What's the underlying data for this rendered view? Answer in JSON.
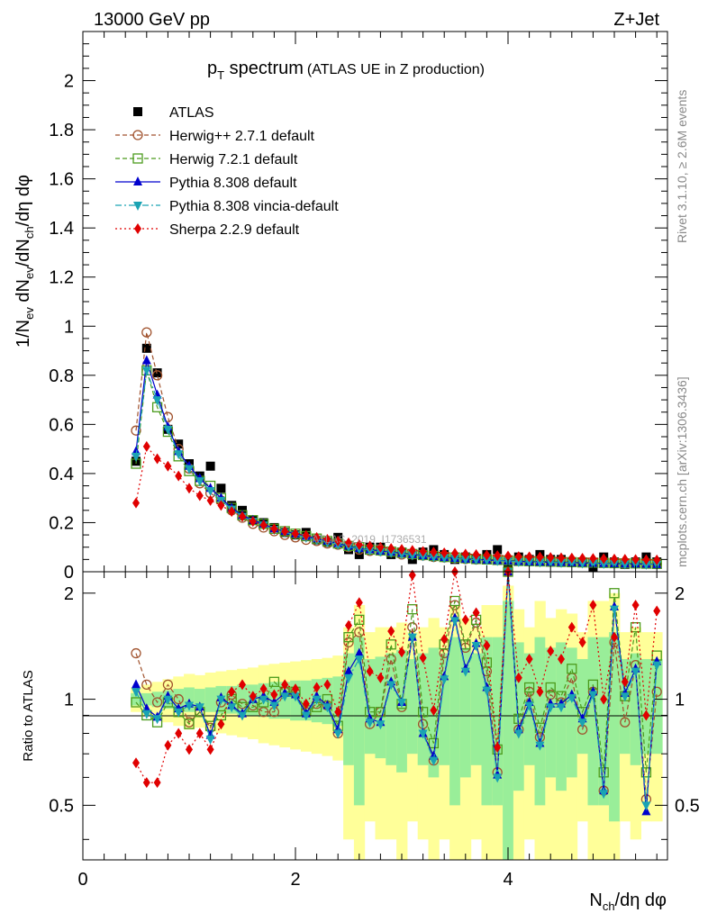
{
  "header": {
    "energy_label": "13000 GeV pp",
    "process_label": "Z+Jet",
    "rivet_label": "Rivet 3.1.10, ≥ 2.6M events",
    "mcplots_label": "mcplots.cern.ch [arXiv:1306.3436]",
    "watermark": "ATLAS_2019_I1736531"
  },
  "colors": {
    "ATLAS": "#000000",
    "herwigpp": "#a0522d",
    "herwig7": "#4b9b1c",
    "pythia": "#0000cd",
    "vincia": "#1aa3b3",
    "sherpa": "#e00000",
    "band_yellow": "#ffff99",
    "band_green": "#99ee99"
  },
  "chart_data": [
    {
      "type": "scatter",
      "panel": "main",
      "title_main": "p",
      "title_sub": "T",
      "title_rest": " spectrum",
      "title_note": "(ATLAS UE in Z production)",
      "ylabel": "1/N_ev dN_ev/dN_ch/dη dφ",
      "xlim": [
        0,
        5.5
      ],
      "ylim": [
        0,
        2.2
      ],
      "yticks": [
        "0",
        "0.2",
        "0.4",
        "0.6",
        "0.8",
        "1",
        "1.2",
        "1.4",
        "1.6",
        "1.8",
        "2"
      ],
      "legend_position": "top-left",
      "x": [
        0.5,
        0.6,
        0.7,
        0.8,
        0.9,
        1.0,
        1.1,
        1.2,
        1.3,
        1.4,
        1.5,
        1.6,
        1.7,
        1.8,
        1.9,
        2.0,
        2.1,
        2.2,
        2.3,
        2.4,
        2.5,
        2.6,
        2.7,
        2.8,
        2.9,
        3.0,
        3.1,
        3.2,
        3.3,
        3.4,
        3.5,
        3.6,
        3.7,
        3.8,
        3.9,
        4.0,
        4.1,
        4.2,
        4.3,
        4.4,
        4.5,
        4.6,
        4.7,
        4.8,
        4.9,
        5.0,
        5.1,
        5.2,
        5.3,
        5.4
      ],
      "series": [
        {
          "name": "ATLAS",
          "key": "ATLAS",
          "marker": "square",
          "line": "none",
          "values": [
            0.45,
            0.91,
            0.81,
            0.58,
            0.52,
            0.44,
            0.39,
            0.43,
            0.34,
            0.27,
            0.25,
            0.21,
            0.2,
            0.18,
            0.16,
            0.15,
            0.16,
            0.13,
            0.12,
            0.14,
            0.09,
            0.07,
            0.1,
            0.1,
            0.07,
            0.08,
            0.05,
            0.08,
            0.09,
            0.07,
            0.05,
            0.06,
            0.05,
            0.07,
            0.09,
            0.02,
            0.06,
            0.05,
            0.07,
            0.05,
            0.05,
            0.04,
            0.04,
            0.02,
            0.06,
            0.04,
            0.03,
            0.04,
            0.06,
            0.04
          ]
        },
        {
          "name": "Herwig++ 2.7.1 default",
          "key": "herwigpp",
          "marker": "circle-open",
          "line": "dashed",
          "values": [
            0.575,
            0.975,
            0.8,
            0.63,
            0.5,
            0.42,
            0.36,
            0.32,
            0.29,
            0.25,
            0.22,
            0.195,
            0.18,
            0.165,
            0.15,
            0.14,
            0.13,
            0.125,
            0.115,
            0.11,
            0.1,
            0.09,
            0.085,
            0.085,
            0.08,
            0.07,
            0.07,
            0.066,
            0.06,
            0.058,
            0.055,
            0.052,
            0.05,
            0.05,
            0.048,
            0.046,
            0.045,
            0.043,
            0.042,
            0.041,
            0.04,
            0.039,
            0.038,
            0.037,
            0.036,
            0.035,
            0.034,
            0.034,
            0.033,
            0.032
          ]
        },
        {
          "name": "Herwig 7.2.1 default",
          "key": "herwig7",
          "marker": "square-open",
          "line": "dashed",
          "values": [
            0.44,
            0.82,
            0.67,
            0.57,
            0.47,
            0.41,
            0.37,
            0.35,
            0.3,
            0.26,
            0.23,
            0.21,
            0.195,
            0.175,
            0.165,
            0.155,
            0.145,
            0.135,
            0.125,
            0.115,
            0.105,
            0.1,
            0.09,
            0.087,
            0.082,
            0.077,
            0.072,
            0.068,
            0.064,
            0.06,
            0.058,
            0.055,
            0.052,
            0.05,
            0.048,
            0.046,
            0.044,
            0.043,
            0.042,
            0.041,
            0.04,
            0.039,
            0.038,
            0.037,
            0.036,
            0.035,
            0.034,
            0.034,
            0.033,
            0.032
          ]
        },
        {
          "name": "Pythia 8.308 default",
          "key": "pythia",
          "marker": "triangle-up",
          "line": "solid",
          "values": [
            0.49,
            0.86,
            0.72,
            0.59,
            0.49,
            0.43,
            0.38,
            0.34,
            0.3,
            0.26,
            0.23,
            0.21,
            0.195,
            0.175,
            0.165,
            0.155,
            0.145,
            0.135,
            0.125,
            0.115,
            0.105,
            0.095,
            0.09,
            0.085,
            0.08,
            0.075,
            0.07,
            0.066,
            0.062,
            0.058,
            0.055,
            0.052,
            0.05,
            0.048,
            0.046,
            0.044,
            0.042,
            0.041,
            0.04,
            0.039,
            0.038,
            0.037,
            0.036,
            0.035,
            0.034,
            0.033,
            0.032,
            0.032,
            0.031,
            0.03
          ]
        },
        {
          "name": "Pythia 8.308 vincia-default",
          "key": "vincia",
          "marker": "triangle-down",
          "line": "dashdot",
          "values": [
            0.47,
            0.82,
            0.7,
            0.58,
            0.48,
            0.42,
            0.37,
            0.33,
            0.29,
            0.255,
            0.225,
            0.205,
            0.19,
            0.172,
            0.16,
            0.15,
            0.14,
            0.13,
            0.12,
            0.112,
            0.102,
            0.094,
            0.088,
            0.083,
            0.078,
            0.073,
            0.068,
            0.064,
            0.06,
            0.057,
            0.054,
            0.051,
            0.049,
            0.047,
            0.045,
            0.043,
            0.041,
            0.04,
            0.039,
            0.038,
            0.037,
            0.036,
            0.035,
            0.034,
            0.033,
            0.032,
            0.031,
            0.031,
            0.03,
            0.03
          ]
        },
        {
          "name": "Sherpa 2.2.9 default",
          "key": "sherpa",
          "marker": "diamond",
          "line": "dotted",
          "values": [
            0.28,
            0.51,
            0.46,
            0.43,
            0.39,
            0.34,
            0.31,
            0.29,
            0.27,
            0.245,
            0.225,
            0.205,
            0.19,
            0.175,
            0.165,
            0.155,
            0.148,
            0.14,
            0.132,
            0.125,
            0.118,
            0.11,
            0.105,
            0.1,
            0.095,
            0.091,
            0.087,
            0.083,
            0.08,
            0.077,
            0.075,
            0.072,
            0.07,
            0.068,
            0.066,
            0.064,
            0.062,
            0.061,
            0.06,
            0.058,
            0.057,
            0.056,
            0.055,
            0.054,
            0.053,
            0.052,
            0.051,
            0.05,
            0.049,
            0.048
          ]
        }
      ]
    },
    {
      "type": "scatter",
      "panel": "ratio",
      "ylabel": "Ratio to ATLAS",
      "xlabel": "N_ch/dη dφ",
      "xlim": [
        0,
        5.5
      ],
      "ylim": [
        0.35,
        2.3
      ],
      "xticks": [
        "0",
        "2",
        "4"
      ],
      "yticks": [
        "0.5",
        "1",
        "2"
      ],
      "x": [
        0.5,
        0.6,
        0.7,
        0.8,
        0.9,
        1.0,
        1.1,
        1.2,
        1.3,
        1.4,
        1.5,
        1.6,
        1.7,
        1.8,
        1.9,
        2.0,
        2.1,
        2.2,
        2.3,
        2.4,
        2.5,
        2.6,
        2.7,
        2.8,
        2.9,
        3.0,
        3.1,
        3.2,
        3.3,
        3.4,
        3.5,
        3.6,
        3.7,
        3.8,
        3.9,
        4.0,
        4.1,
        4.2,
        4.3,
        4.4,
        4.5,
        4.6,
        4.7,
        4.8,
        4.9,
        5.0,
        5.1,
        5.2,
        5.3,
        5.4
      ],
      "band_green_halfwidth": [
        0.04,
        0.04,
        0.05,
        0.06,
        0.07,
        0.08,
        0.07,
        0.08,
        0.09,
        0.09,
        0.1,
        0.1,
        0.11,
        0.12,
        0.12,
        0.13,
        0.13,
        0.14,
        0.15,
        0.16,
        0.35,
        0.5,
        0.3,
        0.32,
        0.35,
        0.38,
        0.3,
        0.35,
        0.4,
        0.35,
        0.5,
        0.4,
        0.35,
        0.5,
        0.5,
        0.9,
        0.45,
        0.35,
        0.5,
        0.4,
        0.45,
        0.4,
        0.3,
        0.5,
        0.5,
        0.55,
        0.3,
        0.35,
        0.3,
        0.3
      ],
      "band_yellow_halfwidth": [
        0.08,
        0.1,
        0.12,
        0.14,
        0.16,
        0.18,
        0.17,
        0.19,
        0.2,
        0.21,
        0.22,
        0.23,
        0.25,
        0.26,
        0.27,
        0.28,
        0.29,
        0.3,
        0.31,
        0.33,
        0.6,
        0.85,
        0.55,
        0.6,
        0.6,
        0.65,
        0.55,
        0.6,
        0.7,
        0.6,
        0.85,
        0.7,
        0.6,
        0.85,
        0.85,
        1.1,
        0.8,
        0.6,
        0.9,
        0.7,
        0.8,
        0.75,
        0.55,
        0.9,
        0.9,
        1.0,
        0.55,
        0.6,
        0.55,
        0.55
      ],
      "series": [
        {
          "name": "Herwig++ 2.7.1 default",
          "key": "herwigpp",
          "marker": "circle-open",
          "line": "dashed",
          "values": [
            1.35,
            1.1,
            0.98,
            1.1,
            1.0,
            0.86,
            0.92,
            0.83,
            0.98,
            1.03,
            0.97,
            0.96,
            0.92,
            0.92,
            1.05,
            1.04,
            0.92,
            0.97,
            0.96,
            0.8,
            1.45,
            1.55,
            0.85,
            0.92,
            1.3,
            0.95,
            1.6,
            0.85,
            0.67,
            1.35,
            1.85,
            1.4,
            1.65,
            1.2,
            0.62,
            2.3,
            0.82,
            1.05,
            0.78,
            1.03,
            0.98,
            1.15,
            0.82,
            1.05,
            0.55,
            1.45,
            0.86,
            1.25,
            0.52,
            1.05
          ]
        },
        {
          "name": "Herwig 7.2.1 default",
          "key": "herwig7",
          "marker": "square-open",
          "line": "dashed",
          "values": [
            0.98,
            0.9,
            0.86,
            0.98,
            0.92,
            0.85,
            0.92,
            0.84,
            0.9,
            1.0,
            0.95,
            0.95,
            0.98,
            1.12,
            1.05,
            1.05,
            0.93,
            0.95,
            1.0,
            0.84,
            1.5,
            1.68,
            0.92,
            0.92,
            1.43,
            0.97,
            1.8,
            0.92,
            0.75,
            1.43,
            1.9,
            1.43,
            1.68,
            1.27,
            0.72,
            2.3,
            0.88,
            1.08,
            0.83,
            1.08,
            1.02,
            1.22,
            0.92,
            1.1,
            0.62,
            2.0,
            1.02,
            1.6,
            0.62,
            1.33
          ]
        },
        {
          "name": "Pythia 8.308 default",
          "key": "pythia",
          "marker": "triangle-up",
          "line": "solid",
          "values": [
            1.1,
            0.94,
            0.89,
            1.02,
            0.94,
            0.97,
            0.95,
            0.79,
            1.01,
            0.96,
            0.91,
            1.0,
            1.02,
            0.98,
            1.04,
            1.03,
            0.91,
            1.02,
            0.96,
            0.82,
            1.2,
            1.35,
            0.88,
            0.86,
            1.12,
            0.98,
            1.5,
            0.8,
            0.69,
            1.16,
            1.7,
            1.22,
            1.44,
            1.08,
            0.61,
            2.3,
            0.82,
            0.98,
            0.75,
            0.97,
            0.97,
            1.03,
            0.88,
            1.05,
            0.55,
            1.83,
            1.04,
            1.22,
            0.48,
            1.28
          ]
        },
        {
          "name": "Pythia 8.308 vincia-default",
          "key": "vincia",
          "marker": "triangle-down",
          "line": "dashdot",
          "values": [
            1.05,
            0.91,
            0.88,
            1.0,
            0.92,
            0.96,
            0.95,
            0.77,
            1.0,
            0.95,
            0.9,
            1.0,
            1.0,
            0.96,
            1.02,
            1.02,
            0.9,
            1.0,
            0.95,
            0.8,
            1.15,
            1.3,
            0.86,
            0.85,
            1.1,
            0.98,
            1.5,
            0.8,
            0.67,
            1.14,
            1.67,
            1.2,
            1.42,
            1.06,
            0.6,
            2.3,
            0.8,
            0.96,
            0.74,
            0.95,
            0.95,
            1.01,
            0.86,
            1.03,
            0.54,
            1.8,
            1.02,
            1.2,
            0.5,
            1.25
          ]
        },
        {
          "name": "Sherpa 2.2.9 default",
          "key": "sherpa",
          "marker": "diamond",
          "line": "dotted",
          "values": [
            0.66,
            0.58,
            0.58,
            0.74,
            0.8,
            0.72,
            0.8,
            0.72,
            0.85,
            1.05,
            1.1,
            1.02,
            1.07,
            1.03,
            1.1,
            1.07,
            0.97,
            1.08,
            1.1,
            0.92,
            1.62,
            1.88,
            1.2,
            1.15,
            1.56,
            1.36,
            2.25,
            1.31,
            0.93,
            1.48,
            2.3,
            1.68,
            1.76,
            1.42,
            0.73,
            2.3,
            1.15,
            1.3,
            1.05,
            1.37,
            1.3,
            1.6,
            1.45,
            1.85,
            1.0,
            1.5,
            1.12,
            1.85,
            0.9,
            1.78
          ]
        }
      ]
    }
  ]
}
